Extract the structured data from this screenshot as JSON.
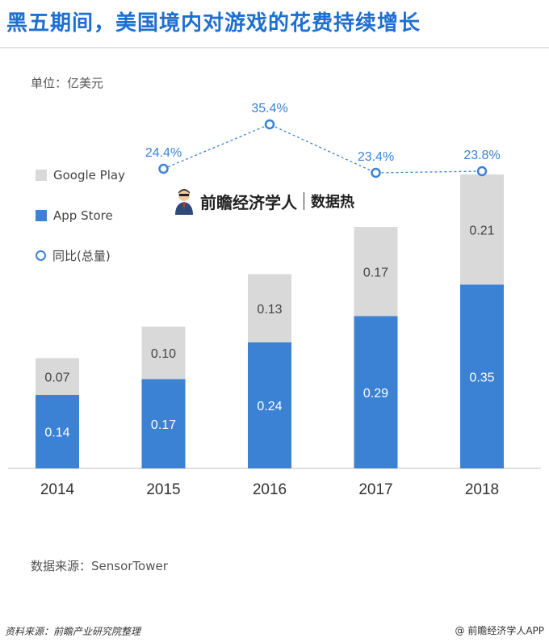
{
  "header": {
    "title": "黑五期间，美国境内对游戏的花费持续增长",
    "unit_label": "单位：亿美元"
  },
  "brand": {
    "name": "前瞻经济学人",
    "sub": "数据热"
  },
  "source": "数据来源：SensorTower",
  "footer": {
    "left": "资料来源：前瞻产业研究院整理",
    "right": "@ 前瞻经济学人APP"
  },
  "colors": {
    "google_play": "#d9d9d9",
    "app_store": "#3b82d4",
    "line": "#3b82d4",
    "title": "#1e6fd0"
  },
  "legend": {
    "google_play": "Google Play",
    "app_store": "App Store",
    "yoy": "同比(总量)"
  },
  "chart_data": {
    "type": "bar",
    "stacked": true,
    "categories": [
      "2014",
      "2015",
      "2016",
      "2017",
      "2018"
    ],
    "series": [
      {
        "name": "App Store",
        "values": [
          0.14,
          0.17,
          0.24,
          0.29,
          0.35
        ],
        "labels": [
          "0.14",
          "0.17",
          "0.24",
          "0.29",
          "0.35"
        ]
      },
      {
        "name": "Google Play",
        "values": [
          0.07,
          0.1,
          0.13,
          0.17,
          0.21
        ],
        "labels": [
          "0.07",
          "0.10",
          "0.13",
          "0.17",
          "0.21"
        ]
      }
    ],
    "line_series": {
      "name": "同比(总量)",
      "x": [
        "2015",
        "2016",
        "2017",
        "2018"
      ],
      "values": [
        24.4,
        35.4,
        23.4,
        23.8
      ],
      "labels": [
        "24.4%",
        "35.4%",
        "23.4%",
        "23.8%"
      ]
    },
    "legend_position": "left"
  }
}
